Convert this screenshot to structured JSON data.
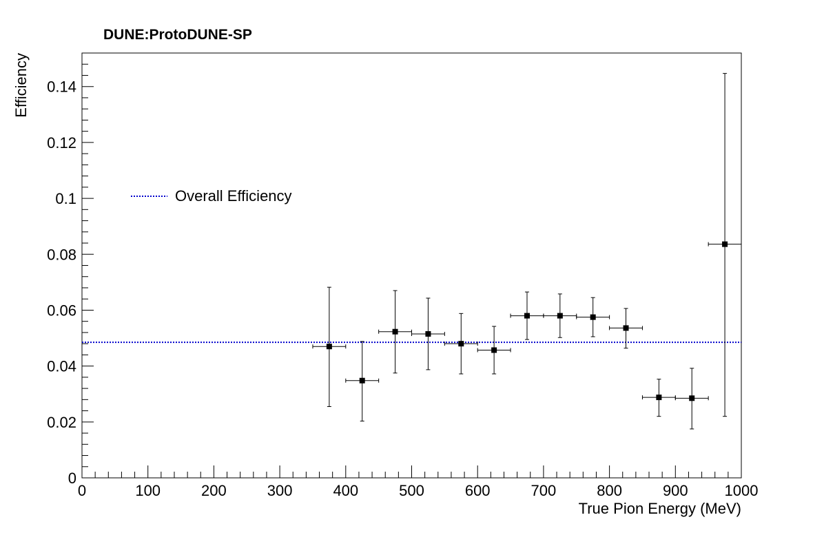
{
  "chart_data": {
    "type": "scatter",
    "title": "DUNE:ProtoDUNE-SP",
    "xlabel": "True Pion Energy (MeV)",
    "ylabel": "Efficiency",
    "xlim": [
      0,
      1000
    ],
    "ylim": [
      0,
      0.152
    ],
    "x_ticks": [
      0,
      100,
      200,
      300,
      400,
      500,
      600,
      700,
      800,
      900,
      1000
    ],
    "y_ticks": [
      0,
      0.02,
      0.04,
      0.06,
      0.08,
      0.1,
      0.12,
      0.14
    ],
    "y_tick_labels": [
      "0",
      "0.02",
      "0.04",
      "0.06",
      "0.08",
      "0.1",
      "0.12",
      "0.14"
    ],
    "grid": false,
    "legend": {
      "position": "upper-left",
      "entries": [
        "Overall Efficiency"
      ]
    },
    "series": [
      {
        "name": "",
        "color": "#000000",
        "marker": "square",
        "x": [
          375,
          425,
          475,
          525,
          575,
          625,
          675,
          725,
          775,
          825,
          875,
          925,
          975
        ],
        "x_err": [
          25,
          25,
          25,
          25,
          25,
          25,
          25,
          25,
          25,
          25,
          25,
          25,
          25
        ],
        "y": [
          0.047,
          0.0348,
          0.0523,
          0.0515,
          0.048,
          0.0457,
          0.058,
          0.058,
          0.0575,
          0.0536,
          0.0288,
          0.0285,
          0.0836
        ],
        "y_err_low": [
          0.0215,
          0.0145,
          0.0148,
          0.0128,
          0.0108,
          0.0085,
          0.0085,
          0.0078,
          0.007,
          0.0072,
          0.0068,
          0.011,
          0.0616
        ],
        "y_err_high": [
          0.0212,
          0.014,
          0.0147,
          0.0128,
          0.0108,
          0.0085,
          0.0085,
          0.0078,
          0.007,
          0.007,
          0.0065,
          0.0107,
          0.0611
        ]
      }
    ],
    "reference_line": {
      "name": "Overall Efficiency",
      "y": 0.0485,
      "style": "dotted",
      "color": "#0000cc"
    }
  }
}
